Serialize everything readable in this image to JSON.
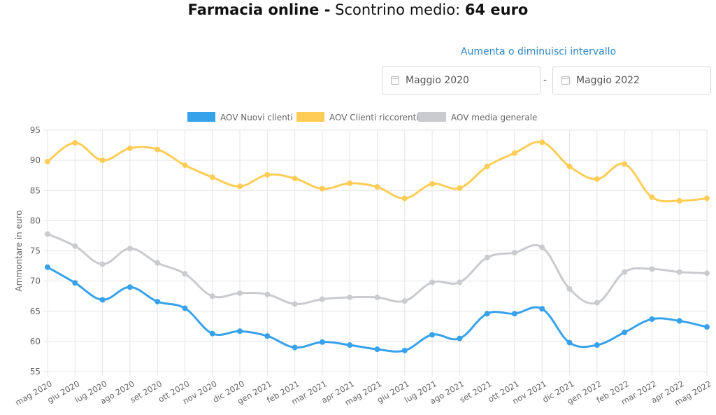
{
  "header": {
    "title_bold": "Farmacia online -",
    "title_normal": " Scontrino medio: ",
    "title_value": "64 euro"
  },
  "interval": {
    "label": "Aumenta o diminuisci intervallo",
    "separator": "-",
    "start": "Maggio 2020",
    "end": "Maggio 2022",
    "icon": "calendar-icon"
  },
  "chart_data": {
    "type": "line",
    "categories": [
      "mag 2020",
      "giu 2020",
      "lug 2020",
      "ago 2020",
      "set 2020",
      "ott 2020",
      "nov 2020",
      "dic 2020",
      "gen 2021",
      "feb 2021",
      "mar 2021",
      "apr 2021",
      "mag 2021",
      "giu 2021",
      "lug 2021",
      "ago 2021",
      "set 2021",
      "ott 2021",
      "nov 2021",
      "dic 2021",
      "gen 2022",
      "feb 2022",
      "mar 2022",
      "apr 2022",
      "mag 2022"
    ],
    "ylabel": "Ammontare in euro",
    "ylim": [
      55,
      95
    ],
    "yticks": [
      55,
      60,
      65,
      70,
      75,
      80,
      85,
      90,
      95
    ],
    "grid": true,
    "legend_position": "top",
    "series": [
      {
        "name": "AOV Nuovi clienti",
        "color": "#36a2eb",
        "values": [
          72.3,
          69.7,
          66.9,
          69.0,
          66.6,
          65.5,
          61.3,
          61.7,
          60.9,
          59.0,
          59.9,
          59.4,
          58.7,
          58.5,
          61.1,
          60.5,
          64.6,
          64.6,
          65.4,
          59.8,
          59.4,
          61.5,
          63.7,
          63.4,
          62.4
        ]
      },
      {
        "name": "AOV Clienti riccorenti",
        "color": "#ffcd56",
        "values": [
          89.8,
          92.9,
          90.0,
          92.0,
          91.8,
          89.2,
          87.2,
          85.7,
          87.6,
          87.0,
          85.3,
          86.2,
          85.6,
          83.7,
          86.1,
          85.4,
          89.0,
          91.2,
          93.0,
          89.0,
          86.9,
          89.4,
          83.9,
          83.3,
          83.7
        ]
      },
      {
        "name": "AOV media generale",
        "color": "#c9cbcf",
        "values": [
          77.8,
          75.8,
          72.8,
          75.4,
          73.0,
          71.2,
          67.5,
          68.0,
          67.8,
          66.2,
          67.0,
          67.3,
          67.3,
          66.7,
          69.8,
          69.8,
          73.9,
          74.7,
          75.6,
          68.7,
          66.4,
          71.5,
          72.0,
          71.5,
          71.3
        ]
      }
    ]
  }
}
